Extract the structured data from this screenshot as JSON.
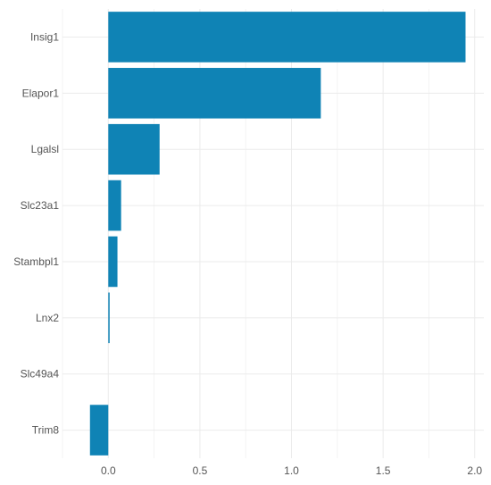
{
  "chart_data": {
    "type": "bar",
    "orientation": "horizontal",
    "categories": [
      "Insig1",
      "Elapor1",
      "Lgalsl",
      "Slc23a1",
      "Stambpl1",
      "Lnx2",
      "Slc49a4",
      "Trim8"
    ],
    "values": [
      1.95,
      1.16,
      0.28,
      0.07,
      0.05,
      0.005,
      0.0,
      -0.1
    ],
    "xlim": [
      -0.25,
      2.05
    ],
    "xticks": [
      0.0,
      0.5,
      1.0,
      1.5,
      2.0
    ],
    "xtick_labels": [
      "0.0",
      "0.5",
      "1.0",
      "1.5",
      "2.0"
    ],
    "title": "",
    "xlabel": "",
    "ylabel": "",
    "grid": true,
    "legend": "none",
    "bar_color": "#0f83b5"
  }
}
